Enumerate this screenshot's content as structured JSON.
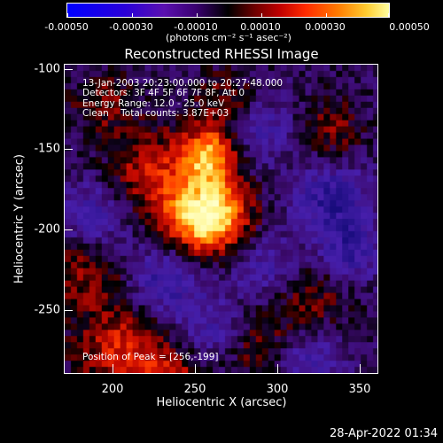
{
  "colorbar": {
    "tick_labels": [
      "-0.00050",
      "-0.00030",
      "-0.00010",
      "0.00010",
      "0.00030",
      "0.00050"
    ],
    "units": "(photons cm⁻² s⁻¹ asec⁻²)"
  },
  "plot": {
    "title": "Reconstructed RHESSI Image",
    "info_line1": "13-Jan-2003 20:23:00.000 to 20:27:48.000",
    "info_line2": "Detectors: 3F 4F 5F 6F 7F 8F, Att 0",
    "info_line3": "Energy Range: 12.0 - 25.0 keV",
    "info_line4": "Clean    Total counts: 3.87E+03",
    "peak_text": "Position of Peak = [256,-199]",
    "xlabel": "Heliocentric X (arcsec)",
    "ylabel": "Heliocentric Y (arcsec)",
    "x_tick_labels": [
      "200",
      "250",
      "300",
      "350"
    ],
    "y_tick_labels": [
      "-100",
      "-150",
      "-200",
      "-250"
    ]
  },
  "footer": {
    "timestamp": "28-Apr-2022 01:34"
  }
}
